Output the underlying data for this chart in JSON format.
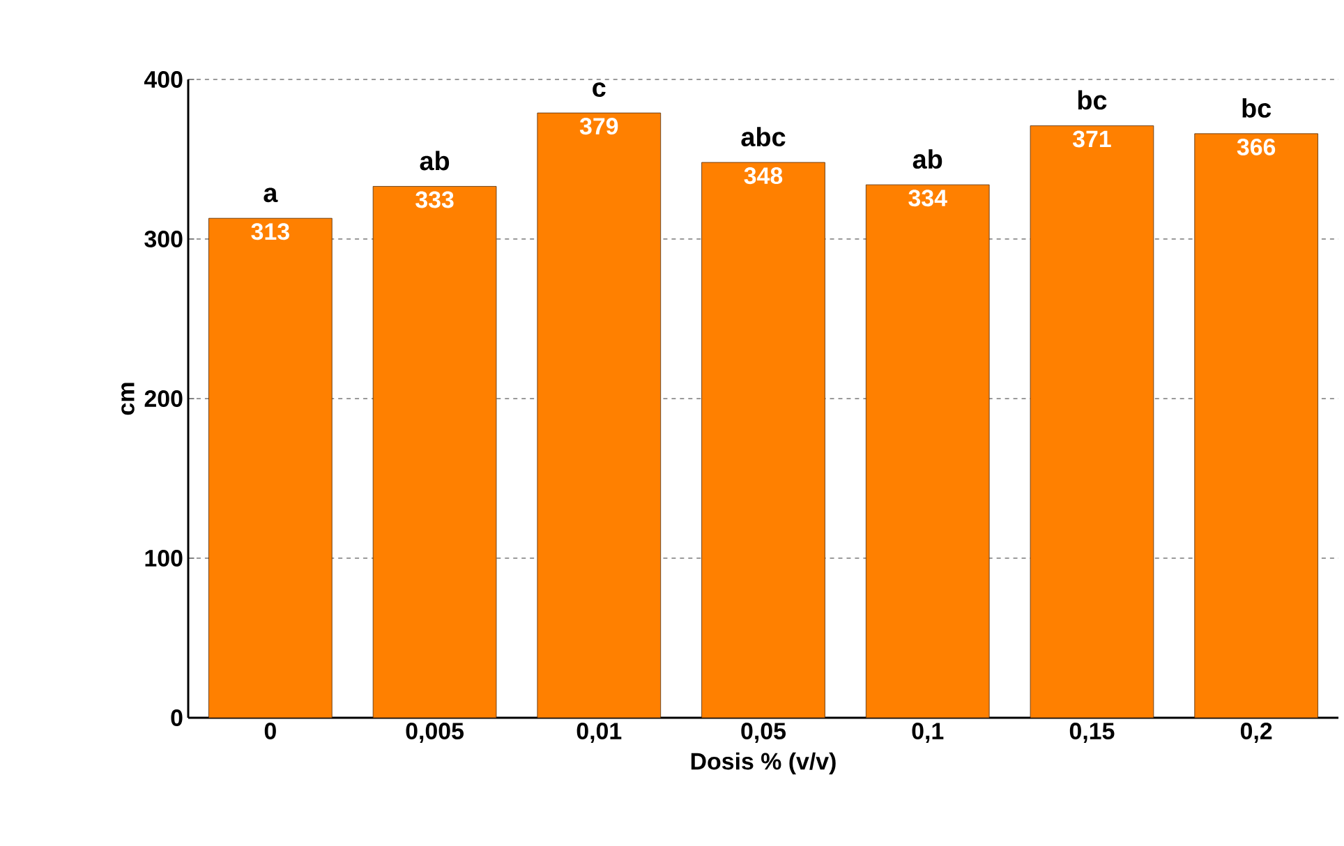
{
  "chart_data": {
    "type": "bar",
    "xlabel": "Dosis % (v/v)",
    "ylabel": "cm",
    "categories": [
      "0",
      "0,005",
      "0,01",
      "0,05",
      "0,1",
      "0,15",
      "0,2"
    ],
    "values": [
      313,
      333,
      379,
      348,
      334,
      371,
      366
    ],
    "color": "#ff8000",
    "data_labels": true,
    "ylim": [
      0,
      400
    ],
    "yticks": [
      0,
      100,
      200,
      300,
      400
    ],
    "grid": "y",
    "annotations": [
      {
        "text": "a",
        "x": "0",
        "y": 313
      },
      {
        "text": "ab",
        "x": "0,005",
        "y": 333
      },
      {
        "text": "c",
        "x": "0,01",
        "y": 379
      },
      {
        "text": "abc",
        "x": "0,05",
        "y": 348
      },
      {
        "text": "ab",
        "x": "0,1",
        "y": 334
      },
      {
        "text": "bc",
        "x": "0,15",
        "y": 371
      },
      {
        "text": "bc",
        "x": "0,2",
        "y": 366
      }
    ]
  }
}
